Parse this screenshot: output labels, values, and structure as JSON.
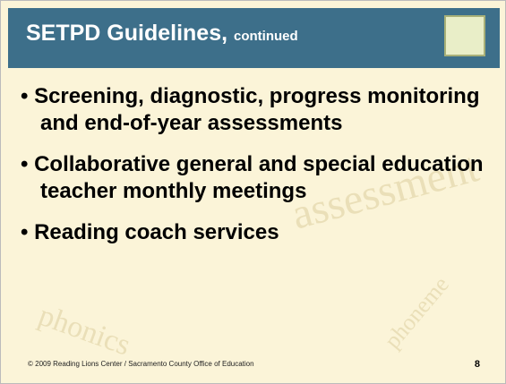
{
  "header": {
    "title": "SETPD Guidelines,",
    "subtitle": "continued"
  },
  "bullets": [
    "Screening, diagnostic, progress monitoring and end-of-year assessments",
    "Collaborative general and special education teacher monthly meetings",
    "Reading coach services"
  ],
  "footer": {
    "credit": "© 2009 Reading Lions Center / Sacramento County Office of Education",
    "page": "8"
  }
}
